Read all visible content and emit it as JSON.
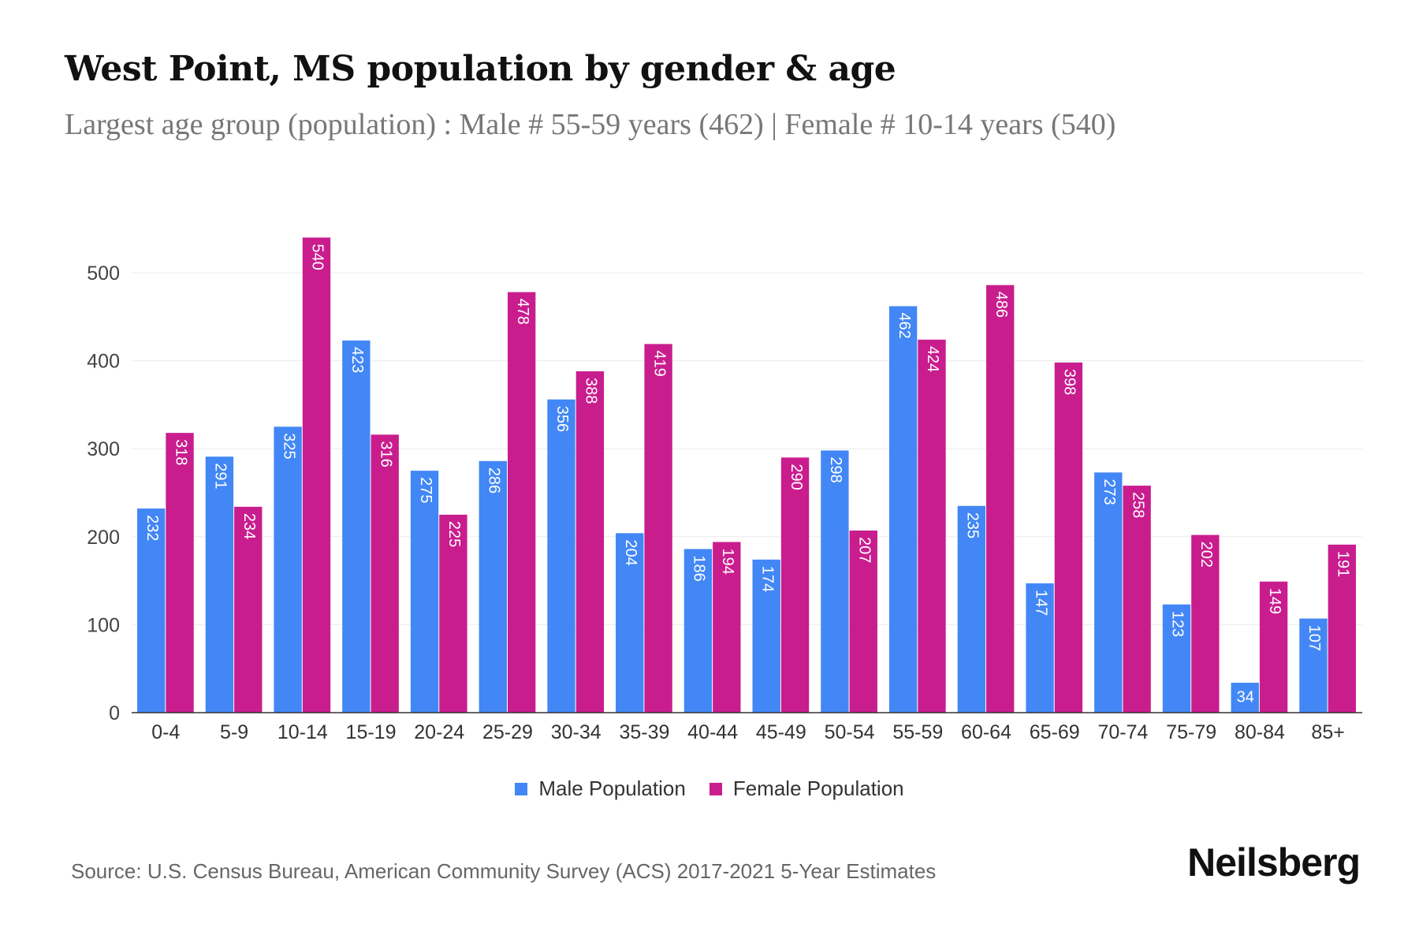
{
  "title": "West Point, MS population by gender & age",
  "subtitle": "Largest age group (population) : Male # 55-59 years (462) | Female # 10-14 years (540)",
  "source": "Source: U.S. Census Bureau, American Community Survey (ACS) 2017-2021 5-Year Estimates",
  "logo": "Neilsberg",
  "chart_data": {
    "type": "bar",
    "categories": [
      "0-4",
      "5-9",
      "10-14",
      "15-19",
      "20-24",
      "25-29",
      "30-34",
      "35-39",
      "40-44",
      "45-49",
      "50-54",
      "55-59",
      "60-64",
      "65-69",
      "70-74",
      "75-79",
      "80-84",
      "85+"
    ],
    "series": [
      {
        "name": "Male Population",
        "color": "#4287f5",
        "values": [
          232,
          291,
          325,
          423,
          275,
          286,
          356,
          204,
          186,
          174,
          298,
          462,
          235,
          147,
          273,
          123,
          34,
          107
        ]
      },
      {
        "name": "Female Population",
        "color": "#c91d8e",
        "values": [
          318,
          234,
          540,
          316,
          225,
          478,
          388,
          419,
          194,
          290,
          207,
          424,
          486,
          398,
          258,
          202,
          149,
          191
        ]
      }
    ],
    "yticks": [
      0,
      100,
      200,
      300,
      400,
      500
    ],
    "ylim": [
      0,
      560
    ],
    "grid": true,
    "legend": "bottom"
  }
}
